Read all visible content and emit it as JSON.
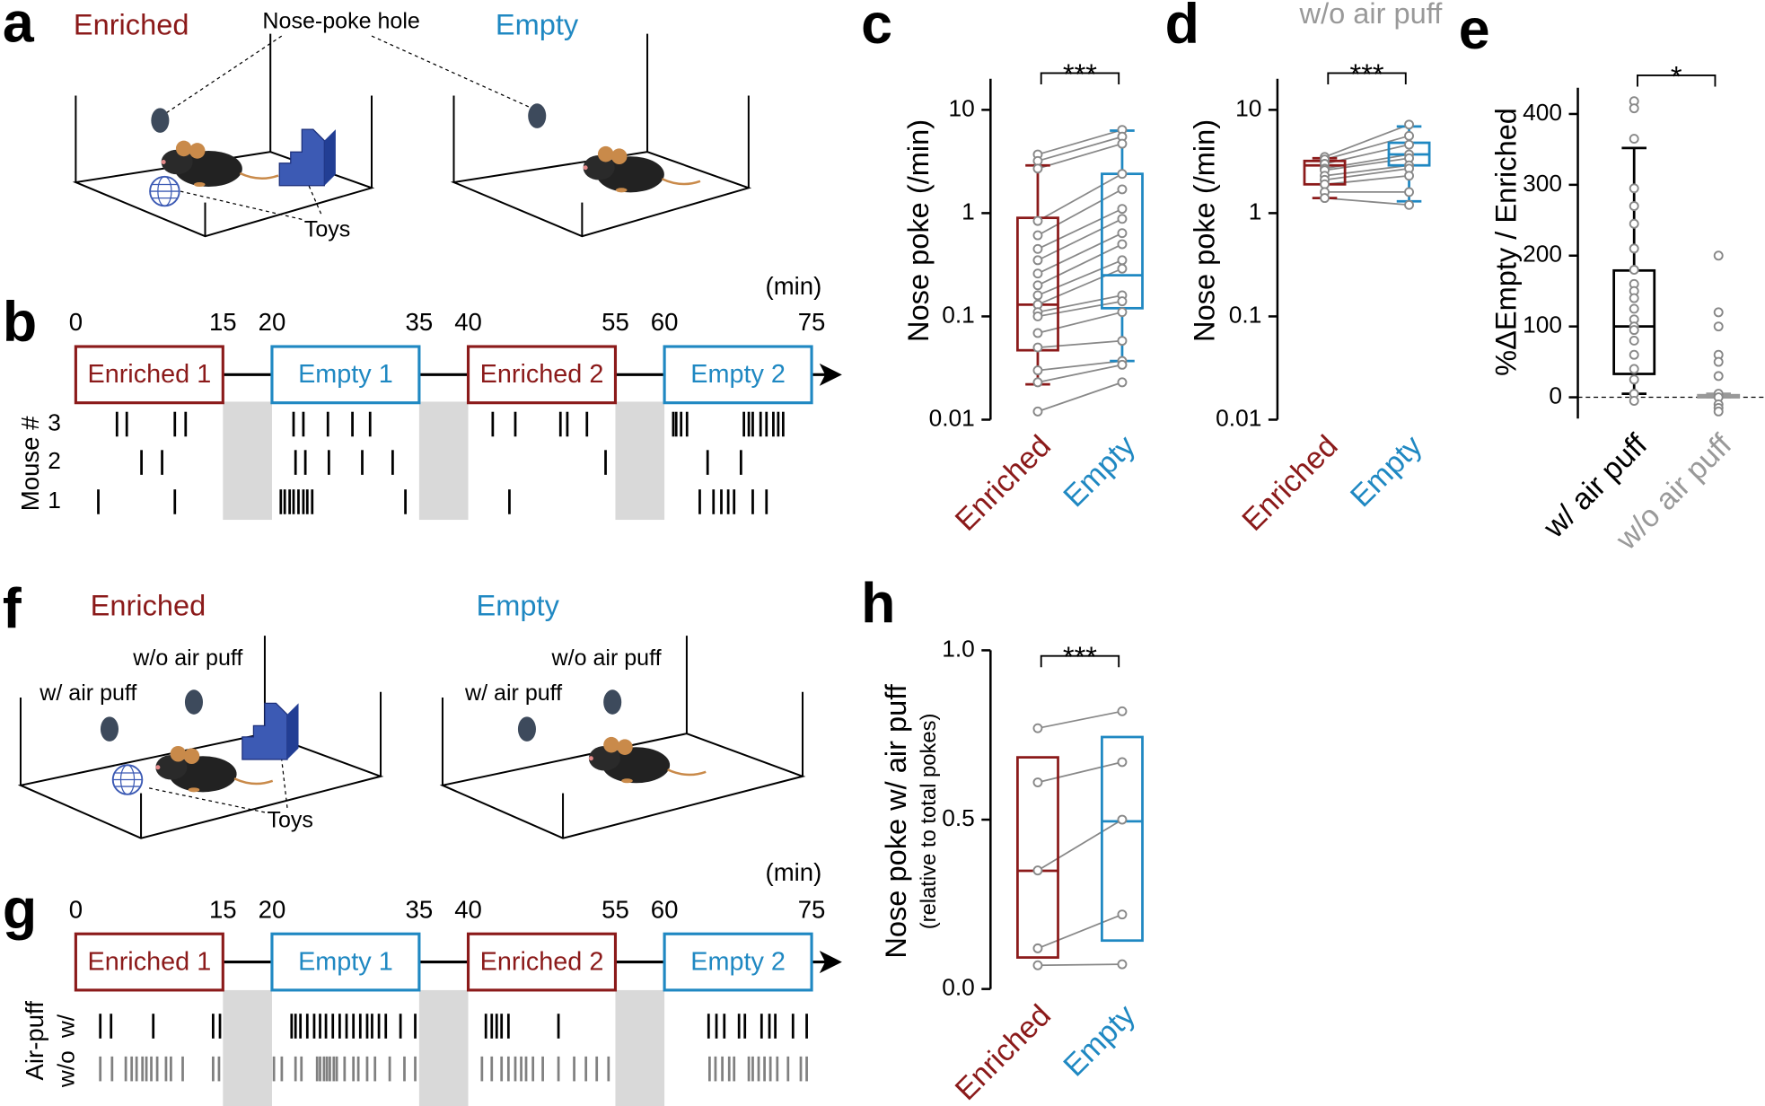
{
  "diagrams": [
    {
      "panel": "a",
      "left_title": "Enriched",
      "right_title": "Empty",
      "hole_label": "Nose-poke hole",
      "toys_label": "Toys"
    },
    {
      "panel": "f",
      "left_title": "Enriched",
      "right_title": "Empty",
      "left_hole_noair": "w/o air puff",
      "left_hole_air": "w/ air puff",
      "right_hole_noair": "w/o air puff",
      "right_hole_air": "w/ air puff",
      "toys_label": "Toys"
    }
  ],
  "timelines": [
    {
      "panel": "b",
      "unit": "(min)",
      "xlim": [
        0,
        75
      ],
      "xticks": [
        0,
        15,
        20,
        35,
        40,
        55,
        60,
        75
      ],
      "sessions": [
        {
          "label": "Enriched 1",
          "start": 0,
          "end": 15,
          "color": "#8b1a1a"
        },
        {
          "label": "Empty 1",
          "start": 20,
          "end": 35,
          "color": "#1f88c2"
        },
        {
          "label": "Enriched 2",
          "start": 40,
          "end": 55,
          "color": "#8b1a1a"
        },
        {
          "label": "Empty 2",
          "start": 60,
          "end": 75,
          "color": "#1f88c2"
        }
      ],
      "row_title": "Mouse #",
      "rows": [
        {
          "label": "3",
          "color": "#000000",
          "times": [
            4.2,
            5.2,
            10.1,
            11.2,
            22.2,
            23.2,
            25.7,
            28.2,
            30.0,
            42.5,
            44.8,
            49.4,
            50.1,
            52.1,
            60.9,
            61.2,
            61.7,
            62.3,
            68.1,
            68.6,
            69.0,
            69.8,
            70.4,
            71.1,
            71.6,
            72.1
          ]
        },
        {
          "label": "2",
          "color": "#000000",
          "times": [
            6.7,
            8.8,
            22.4,
            23.4,
            25.8,
            29.2,
            32.3,
            54.0,
            64.4,
            67.8
          ]
        },
        {
          "label": "1",
          "color": "#000000",
          "times": [
            2.3,
            10.1,
            20.9,
            21.3,
            21.8,
            22.2,
            22.7,
            23.2,
            23.6,
            24.1,
            33.6,
            44.2,
            63.6,
            65.0,
            65.8,
            66.5,
            67.1,
            69.0,
            70.4
          ]
        }
      ]
    },
    {
      "panel": "g",
      "unit": "(min)",
      "xlim": [
        0,
        75
      ],
      "xticks": [
        0,
        15,
        20,
        35,
        40,
        55,
        60,
        75
      ],
      "sessions": [
        {
          "label": "Enriched 1",
          "start": 0,
          "end": 15,
          "color": "#8b1a1a"
        },
        {
          "label": "Empty 1",
          "start": 20,
          "end": 35,
          "color": "#1f88c2"
        },
        {
          "label": "Enriched 2",
          "start": 40,
          "end": 55,
          "color": "#8b1a1a"
        },
        {
          "label": "Empty 2",
          "start": 60,
          "end": 75,
          "color": "#1f88c2"
        }
      ],
      "row_title": "Air-puff",
      "rows": [
        {
          "label": "w/",
          "color": "#000000",
          "times": [
            2.5,
            3.6,
            7.9,
            14.0,
            14.7,
            22.0,
            22.4,
            22.9,
            23.6,
            24.3,
            24.9,
            25.5,
            26.2,
            26.9,
            27.6,
            28.3,
            29.0,
            29.7,
            30.2,
            30.9,
            31.6,
            33.1,
            34.6,
            41.8,
            42.4,
            42.9,
            43.4,
            44.1,
            49.2,
            64.5,
            65.3,
            66.1,
            67.6,
            68.2,
            69.9,
            70.7,
            71.3,
            73.1,
            74.5
          ]
        },
        {
          "label": "w/o",
          "color": "#808080",
          "times": [
            2.5,
            3.7,
            5.1,
            5.7,
            6.2,
            6.8,
            7.2,
            7.7,
            8.3,
            9.2,
            9.7,
            10.9,
            14.0,
            14.6,
            20.2,
            21.0,
            22.4,
            23.0,
            24.6,
            24.9,
            25.3,
            25.6,
            25.9,
            26.3,
            26.6,
            27.4,
            28.3,
            28.8,
            29.7,
            30.5,
            32.0,
            33.5,
            34.6,
            41.4,
            42.4,
            43.4,
            44.1,
            44.8,
            45.4,
            45.9,
            46.6,
            47.6,
            49.2,
            50.8,
            52.0,
            53.1,
            54.3,
            64.6,
            65.2,
            65.9,
            66.6,
            67.1,
            68.6,
            69.0,
            69.6,
            70.2,
            70.8,
            71.5,
            72.6,
            73.9,
            74.5
          ]
        }
      ]
    }
  ],
  "chart_data": [
    {
      "type": "box",
      "panel": "c",
      "ylabel": "Nose poke (/min)",
      "log_y": true,
      "paired": true,
      "significance": "***",
      "ylim": [
        0.01,
        20
      ],
      "yticks": [
        0.01,
        0.1,
        1,
        10
      ],
      "categories": [
        "Enriched",
        "Empty"
      ],
      "series": [
        {
          "color": "#8b1a1a",
          "box": {
            "whislo": 0.022,
            "q1": 0.047,
            "med": 0.13,
            "q3": 0.9,
            "whishi": 2.9
          },
          "values": [
            3.7,
            3.2,
            2.7,
            0.84,
            0.61,
            0.45,
            0.35,
            0.26,
            0.2,
            0.16,
            0.13,
            0.11,
            0.1,
            0.069,
            0.05,
            0.03,
            0.023,
            0.012
          ]
        },
        {
          "color": "#1f88c2",
          "box": {
            "whislo": 0.037,
            "q1": 0.12,
            "med": 0.25,
            "q3": 2.4,
            "whishi": 6.3
          },
          "values": [
            6.4,
            5.5,
            4.7,
            2.4,
            1.7,
            1.1,
            0.88,
            0.64,
            0.5,
            0.35,
            0.29,
            0.16,
            0.14,
            0.11,
            0.058,
            0.037,
            0.034,
            0.023
          ]
        }
      ]
    },
    {
      "type": "box",
      "panel": "d",
      "title": "w/o air puff",
      "ylabel": "Nose poke (/min)",
      "log_y": true,
      "paired": true,
      "significance": "***",
      "ylim": [
        0.01,
        20
      ],
      "yticks": [
        0.01,
        0.1,
        1,
        10
      ],
      "categories": [
        "Enriched",
        "Empty"
      ],
      "series": [
        {
          "color": "#8b1a1a",
          "box": {
            "whislo": 1.4,
            "q1": 1.9,
            "med": 2.9,
            "q3": 3.2,
            "whishi": 3.4
          },
          "values": [
            3.5,
            3.3,
            3.0,
            2.7,
            2.6,
            2.3,
            2.1,
            1.9,
            1.6,
            1.4
          ]
        },
        {
          "color": "#1f88c2",
          "box": {
            "whislo": 1.3,
            "q1": 2.9,
            "med": 3.7,
            "q3": 4.8,
            "whishi": 6.9
          },
          "values": [
            7.2,
            5.6,
            4.6,
            3.7,
            3.4,
            2.9,
            2.7,
            2.3,
            1.6,
            1.2
          ]
        }
      ]
    },
    {
      "type": "box",
      "panel": "e",
      "ylabel": "%ΔEmpty / Enriched",
      "log_y": false,
      "paired": false,
      "significance": "*",
      "hline": 0,
      "ylim": [
        -30,
        437
      ],
      "yticks": [
        0,
        100,
        200,
        300,
        400
      ],
      "categories": [
        "w/ air puff",
        "w/o air puff"
      ],
      "series": [
        {
          "color": "#000000",
          "box": {
            "whislo": 5,
            "q1": 33,
            "med": 100,
            "q3": 179,
            "whishi": 352
          },
          "values": [
            418,
            408,
            365,
            295,
            270,
            245,
            210,
            180,
            160,
            150,
            140,
            125,
            110,
            100,
            95,
            80,
            60,
            40,
            25,
            5,
            -5
          ]
        },
        {
          "color": "#999999",
          "box": {
            "whislo": 0,
            "q1": 0,
            "med": 2,
            "q3": 3,
            "whishi": 5
          },
          "values": [
            200,
            120,
            100,
            60,
            50,
            30,
            5,
            0,
            -10,
            -15,
            -20
          ]
        }
      ]
    },
    {
      "type": "box",
      "panel": "h",
      "ylabel": "Nose poke w/ air puff",
      "ylabel2": "(relative to total pokes)",
      "log_y": false,
      "paired": true,
      "significance": "***",
      "ylim": [
        0,
        1
      ],
      "yticks": [
        {
          "value": 0,
          "label": "0.0"
        },
        0.5,
        {
          "value": 1,
          "label": "1.0"
        }
      ],
      "categories": [
        "Enriched",
        "Empty"
      ],
      "series": [
        {
          "color": "#8b1a1a",
          "box": {
            "q1": 0.093,
            "med": 0.349,
            "q3": 0.684
          },
          "values": [
            0.77,
            0.61,
            0.35,
            0.12,
            0.07
          ]
        },
        {
          "color": "#1f88c2",
          "box": {
            "q1": 0.143,
            "med": 0.495,
            "q3": 0.744
          },
          "values": [
            0.82,
            0.67,
            0.5,
            0.22,
            0.073
          ]
        }
      ]
    }
  ]
}
